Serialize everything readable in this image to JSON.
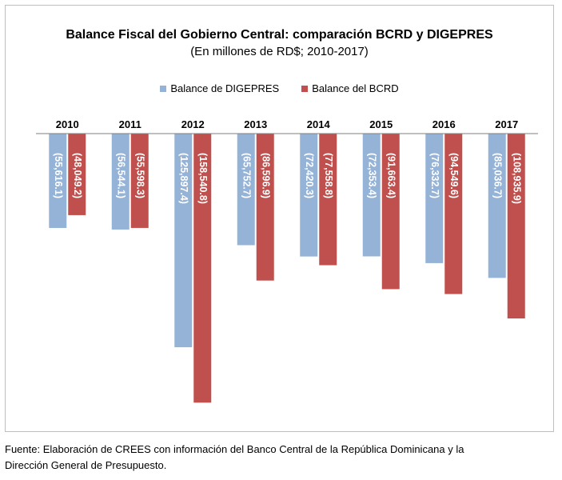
{
  "chart_data": {
    "type": "bar",
    "title": "Balance Fiscal del Gobierno Central: comparación BCRD y DIGEPRES",
    "subtitle": "(En millones de RD$; 2010-2017)",
    "categories": [
      "2010",
      "2011",
      "2012",
      "2013",
      "2014",
      "2015",
      "2016",
      "2017"
    ],
    "series": [
      {
        "name": "Balance de DIGEPRES",
        "color": "#95b3d7",
        "values": [
          -55616.1,
          -56544.1,
          -125897.4,
          -65752.7,
          -72420.3,
          -72353.4,
          -76332.7,
          -85036.7
        ],
        "labels": [
          "(55,616.1)",
          "(56,544.1)",
          "(125,897.4)",
          "(65,752.7)",
          "(72,420.3)",
          "(72,353.4)",
          "(76,332.7)",
          "(85,036.7)"
        ]
      },
      {
        "name": "Balance del BCRD",
        "color": "#c0504d",
        "values": [
          -48049.2,
          -55598.3,
          -158540.8,
          -86596.9,
          -77558.8,
          -91663.4,
          -94549.6,
          -108935.9
        ],
        "labels": [
          "(48,049.2)",
          "(55,598.3)",
          "(158,540.8)",
          "(86,596.9)",
          "(77,558.8)",
          "(91,663.4)",
          "(94,549.6)",
          "(108,935.9)"
        ]
      }
    ],
    "ylim": [
      -165000,
      0
    ],
    "xlabel": "",
    "ylabel": "",
    "legend_position": "top-center",
    "grid": false
  },
  "source_note": {
    "line1": "Fuente: Elaboración de CREES con información del Banco Central de la República Dominicana y la",
    "line2": "Dirección General de Presupuesto."
  }
}
